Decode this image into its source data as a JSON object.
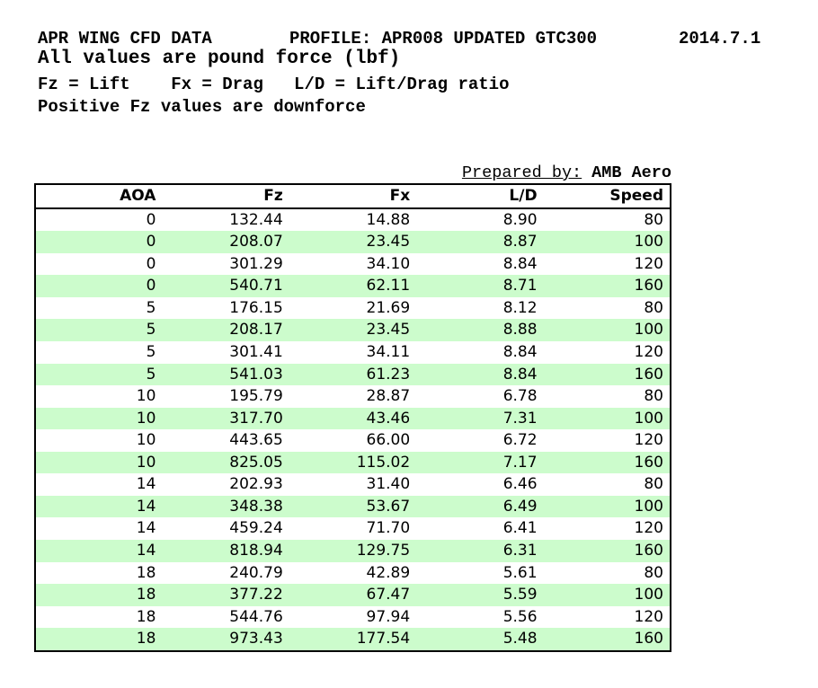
{
  "title_block": {
    "line1_left": "APR WING CFD DATA",
    "line1_center": "PROFILE: APR008 UPDATED GTC300",
    "line1_right": "2014.7.1",
    "line2": "All values are pound force (lbf)",
    "line3": "Fz = Lift    Fx = Drag   L/D = Lift/Drag ratio",
    "line4": "Positive Fz values are downforce"
  },
  "prepared_by": {
    "label": "Prepared by:",
    "value": "AMB Aero"
  },
  "table": {
    "columns": [
      "AOA",
      "Fz",
      "Fx",
      "L/D",
      "Speed"
    ],
    "rows": [
      [
        "0",
        "132.44",
        "14.88",
        "8.90",
        "80"
      ],
      [
        "0",
        "208.07",
        "23.45",
        "8.87",
        "100"
      ],
      [
        "0",
        "301.29",
        "34.10",
        "8.84",
        "120"
      ],
      [
        "0",
        "540.71",
        "62.11",
        "8.71",
        "160"
      ],
      [
        "5",
        "176.15",
        "21.69",
        "8.12",
        "80"
      ],
      [
        "5",
        "208.17",
        "23.45",
        "8.88",
        "100"
      ],
      [
        "5",
        "301.41",
        "34.11",
        "8.84",
        "120"
      ],
      [
        "5",
        "541.03",
        "61.23",
        "8.84",
        "160"
      ],
      [
        "10",
        "195.79",
        "28.87",
        "6.78",
        "80"
      ],
      [
        "10",
        "317.70",
        "43.46",
        "7.31",
        "100"
      ],
      [
        "10",
        "443.65",
        "66.00",
        "6.72",
        "120"
      ],
      [
        "10",
        "825.05",
        "115.02",
        "7.17",
        "160"
      ],
      [
        "14",
        "202.93",
        "31.40",
        "6.46",
        "80"
      ],
      [
        "14",
        "348.38",
        "53.67",
        "6.49",
        "100"
      ],
      [
        "14",
        "459.24",
        "71.70",
        "6.41",
        "120"
      ],
      [
        "14",
        "818.94",
        "129.75",
        "6.31",
        "160"
      ],
      [
        "18",
        "240.79",
        "42.89",
        "5.61",
        "80"
      ],
      [
        "18",
        "377.22",
        "67.47",
        "5.59",
        "100"
      ],
      [
        "18",
        "544.76",
        "97.94",
        "5.56",
        "120"
      ],
      [
        "18",
        "973.43",
        "177.54",
        "5.48",
        "160"
      ]
    ]
  },
  "colors": {
    "stripe": "#ccfccc",
    "border": "#000000",
    "background": "#ffffff",
    "text": "#000000"
  },
  "chart_data": {
    "type": "table",
    "title": "APR WING CFD DATA",
    "units": "lbf",
    "columns": [
      "AOA",
      "Fz",
      "Fx",
      "L/D",
      "Speed"
    ],
    "rows": [
      [
        0,
        132.44,
        14.88,
        8.9,
        80
      ],
      [
        0,
        208.07,
        23.45,
        8.87,
        100
      ],
      [
        0,
        301.29,
        34.1,
        8.84,
        120
      ],
      [
        0,
        540.71,
        62.11,
        8.71,
        160
      ],
      [
        5,
        176.15,
        21.69,
        8.12,
        80
      ],
      [
        5,
        208.17,
        23.45,
        8.88,
        100
      ],
      [
        5,
        301.41,
        34.11,
        8.84,
        120
      ],
      [
        5,
        541.03,
        61.23,
        8.84,
        160
      ],
      [
        10,
        195.79,
        28.87,
        6.78,
        80
      ],
      [
        10,
        317.7,
        43.46,
        7.31,
        100
      ],
      [
        10,
        443.65,
        66.0,
        6.72,
        120
      ],
      [
        10,
        825.05,
        115.02,
        7.17,
        160
      ],
      [
        14,
        202.93,
        31.4,
        6.46,
        80
      ],
      [
        14,
        348.38,
        53.67,
        6.49,
        100
      ],
      [
        14,
        459.24,
        71.7,
        6.41,
        120
      ],
      [
        14,
        818.94,
        129.75,
        6.31,
        160
      ],
      [
        18,
        240.79,
        42.89,
        5.61,
        80
      ],
      [
        18,
        377.22,
        67.47,
        5.59,
        100
      ],
      [
        18,
        544.76,
        97.94,
        5.56,
        120
      ],
      [
        18,
        973.43,
        177.54,
        5.48,
        160
      ]
    ]
  }
}
